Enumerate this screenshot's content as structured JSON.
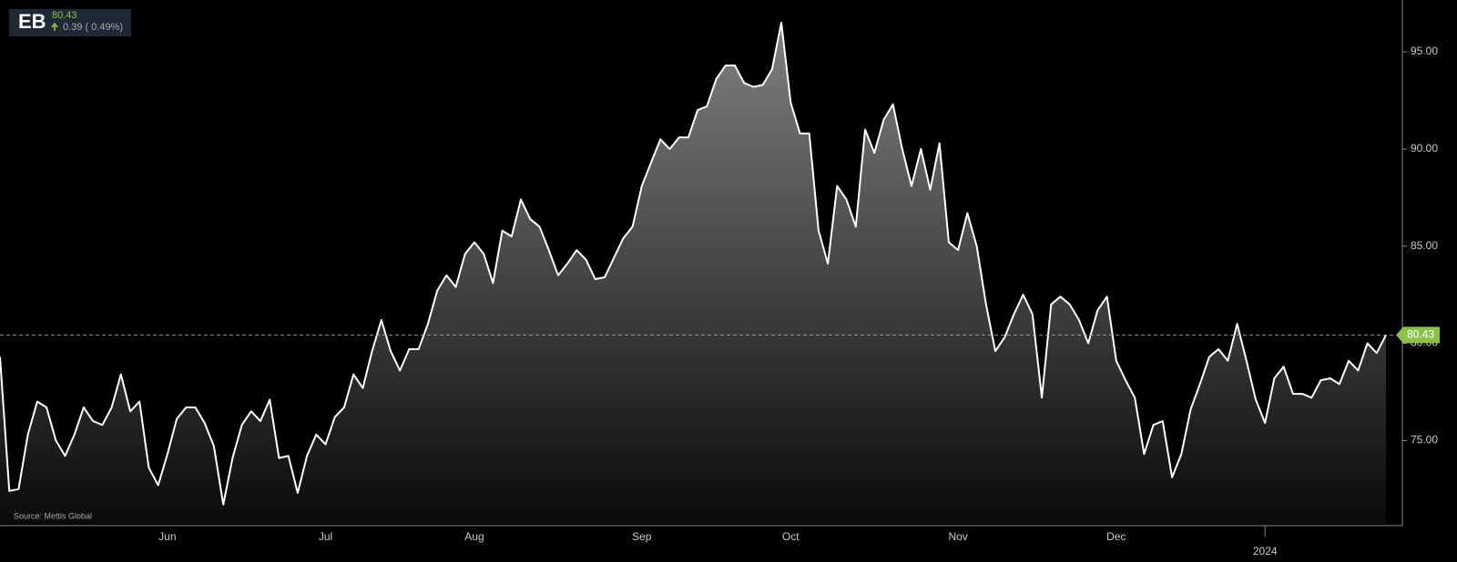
{
  "header": {
    "symbol": "EB",
    "price": "80.43",
    "change": "0.39 ( 0.49%)"
  },
  "source": "Source: Mettis Global",
  "chart_data": {
    "type": "area",
    "color": "#ffffff",
    "categories": [
      null,
      null,
      null,
      null,
      null,
      null,
      null,
      null,
      null,
      null,
      null,
      null,
      null,
      null,
      null,
      null,
      null,
      null,
      "Jun",
      null,
      null,
      null,
      null,
      null,
      null,
      null,
      null,
      null,
      null,
      null,
      null,
      null,
      null,
      null,
      null,
      "Jul",
      null,
      null,
      null,
      null,
      null,
      null,
      null,
      null,
      null,
      null,
      null,
      null,
      null,
      null,
      null,
      "Aug",
      null,
      null,
      null,
      null,
      null,
      null,
      null,
      null,
      null,
      null,
      null,
      null,
      null,
      null,
      null,
      null,
      null,
      "Sep",
      null,
      null,
      null,
      null,
      null,
      null,
      null,
      null,
      null,
      null,
      null,
      null,
      null,
      null,
      null,
      "Oct",
      null,
      null,
      null,
      null,
      null,
      null,
      null,
      null,
      null,
      null,
      null,
      null,
      null,
      null,
      null,
      null,
      null,
      "Nov",
      null,
      null,
      null,
      null,
      null,
      null,
      null,
      null,
      null,
      null,
      null,
      null,
      null,
      null,
      null,
      null,
      "Dec",
      null,
      null,
      null,
      null,
      null,
      null,
      null,
      null,
      null,
      null,
      null,
      null,
      null,
      null,
      null,
      "2024",
      null,
      null,
      null,
      null,
      null,
      null,
      null,
      null,
      null,
      null,
      null,
      null,
      null
    ],
    "values": [
      79.3,
      72.4,
      72.5,
      75.3,
      77.0,
      76.7,
      75.0,
      74.2,
      75.3,
      76.7,
      76.0,
      75.8,
      76.7,
      78.4,
      76.5,
      77.0,
      73.6,
      72.7,
      74.3,
      76.1,
      76.7,
      76.7,
      75.9,
      74.7,
      71.7,
      74.1,
      75.8,
      76.5,
      76.0,
      77.1,
      74.1,
      74.2,
      72.3,
      74.2,
      75.3,
      74.8,
      76.2,
      76.7,
      78.4,
      77.7,
      79.6,
      81.2,
      79.6,
      78.6,
      79.7,
      79.7,
      81.0,
      82.7,
      83.5,
      82.9,
      84.6,
      85.2,
      84.6,
      83.1,
      85.8,
      85.5,
      87.4,
      86.4,
      86.0,
      84.8,
      83.5,
      84.1,
      84.8,
      84.3,
      83.3,
      83.4,
      84.4,
      85.4,
      86.0,
      88.1,
      89.3,
      90.5,
      90.0,
      90.6,
      90.6,
      92.0,
      92.2,
      93.6,
      94.3,
      94.3,
      93.4,
      93.2,
      93.3,
      94.1,
      96.5,
      92.4,
      90.8,
      90.8,
      85.8,
      84.1,
      88.1,
      87.4,
      86.0,
      91.0,
      89.8,
      91.5,
      92.3,
      90.0,
      88.1,
      90.0,
      87.9,
      90.3,
      85.2,
      84.8,
      86.7,
      85.0,
      82.0,
      79.6,
      80.3,
      81.5,
      82.5,
      81.5,
      77.2,
      82.0,
      82.4,
      82.0,
      81.2,
      80.0,
      81.7,
      82.4,
      79.1,
      78.1,
      77.2,
      74.3,
      75.8,
      76.0,
      73.1,
      74.3,
      76.6,
      77.9,
      79.3,
      79.7,
      79.1,
      81.0,
      79.1,
      77.1,
      75.9,
      78.2,
      78.8,
      77.4,
      77.4,
      77.2,
      78.1,
      78.2,
      77.9,
      79.1,
      78.6,
      80.0,
      79.5,
      80.43
    ],
    "ylim": [
      70.71,
      97.67
    ],
    "yticks": [
      {
        "value": 75,
        "label": "75.00"
      },
      {
        "value": 80,
        "label": "80.00"
      },
      {
        "value": 85,
        "label": "85.00"
      },
      {
        "value": 90,
        "label": "90.00"
      },
      {
        "value": 95,
        "label": "95.00"
      }
    ],
    "last_color": "#8bc34a"
  }
}
